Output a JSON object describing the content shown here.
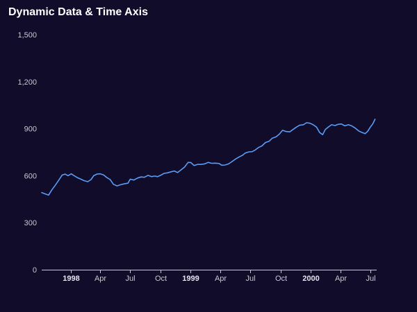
{
  "chart_data": {
    "type": "line",
    "title": "Dynamic Data & Time Axis",
    "xlabel": "",
    "ylabel": "",
    "x_axis_type": "time",
    "xlim": [
      "1997-10-05",
      "2000-07-19"
    ],
    "ylim": [
      0,
      1500
    ],
    "yticks": [
      {
        "value": 0,
        "label": "0"
      },
      {
        "value": 300,
        "label": "300"
      },
      {
        "value": 600,
        "label": "600"
      },
      {
        "value": 900,
        "label": "900"
      },
      {
        "value": 1200,
        "label": "1,200"
      },
      {
        "value": 1500,
        "label": "1,500"
      }
    ],
    "xticks": [
      {
        "date": "1998-01-01",
        "label": "1998",
        "strong": true
      },
      {
        "date": "1998-04-01",
        "label": "Apr",
        "strong": false
      },
      {
        "date": "1998-07-01",
        "label": "Jul",
        "strong": false
      },
      {
        "date": "1998-10-01",
        "label": "Oct",
        "strong": false
      },
      {
        "date": "1999-01-01",
        "label": "1999",
        "strong": true
      },
      {
        "date": "1999-04-01",
        "label": "Apr",
        "strong": false
      },
      {
        "date": "1999-07-01",
        "label": "Jul",
        "strong": false
      },
      {
        "date": "1999-10-01",
        "label": "Oct",
        "strong": false
      },
      {
        "date": "2000-01-01",
        "label": "2000",
        "strong": true
      },
      {
        "date": "2000-04-01",
        "label": "Apr",
        "strong": false
      },
      {
        "date": "2000-07-01",
        "label": "Jul",
        "strong": false
      }
    ],
    "grid": false,
    "colors": {
      "background": "#100c2a",
      "line": "#5b9cf6",
      "axis": "#c9cad1",
      "text": "#ffffff"
    },
    "series": [
      {
        "name": "",
        "points": [
          [
            "1997-10-05",
            492
          ],
          [
            "1997-10-16",
            483
          ],
          [
            "1997-10-26",
            476
          ],
          [
            "1997-11-05",
            510
          ],
          [
            "1997-11-14",
            535
          ],
          [
            "1997-11-25",
            568
          ],
          [
            "1997-12-06",
            604
          ],
          [
            "1997-12-15",
            610
          ],
          [
            "1997-12-24",
            600
          ],
          [
            "1998-01-03",
            612
          ],
          [
            "1998-01-10",
            602
          ],
          [
            "1998-01-21",
            588
          ],
          [
            "1998-02-01",
            578
          ],
          [
            "1998-02-11",
            568
          ],
          [
            "1998-02-22",
            562
          ],
          [
            "1998-03-04",
            575
          ],
          [
            "1998-03-12",
            600
          ],
          [
            "1998-03-22",
            610
          ],
          [
            "1998-04-01",
            612
          ],
          [
            "1998-04-11",
            605
          ],
          [
            "1998-04-21",
            588
          ],
          [
            "1998-05-01",
            575
          ],
          [
            "1998-05-11",
            545
          ],
          [
            "1998-05-22",
            535
          ],
          [
            "1998-06-01",
            542
          ],
          [
            "1998-06-12",
            548
          ],
          [
            "1998-06-24",
            552
          ],
          [
            "1998-07-01",
            578
          ],
          [
            "1998-07-12",
            572
          ],
          [
            "1998-07-23",
            585
          ],
          [
            "1998-08-03",
            592
          ],
          [
            "1998-08-13",
            590
          ],
          [
            "1998-08-24",
            602
          ],
          [
            "1998-09-04",
            594
          ],
          [
            "1998-09-13",
            598
          ],
          [
            "1998-09-22",
            594
          ],
          [
            "1998-10-01",
            602
          ],
          [
            "1998-10-12",
            615
          ],
          [
            "1998-10-22",
            618
          ],
          [
            "1998-11-02",
            625
          ],
          [
            "1998-11-12",
            630
          ],
          [
            "1998-11-22",
            620
          ],
          [
            "1998-12-03",
            638
          ],
          [
            "1998-12-13",
            655
          ],
          [
            "1998-12-24",
            685
          ],
          [
            "1999-01-01",
            684
          ],
          [
            "1999-01-11",
            665
          ],
          [
            "1999-01-22",
            672
          ],
          [
            "1999-02-01",
            672
          ],
          [
            "1999-02-12",
            675
          ],
          [
            "1999-02-23",
            685
          ],
          [
            "1999-03-05",
            679
          ],
          [
            "1999-03-16",
            680
          ],
          [
            "1999-03-28",
            678
          ],
          [
            "1999-04-05",
            667
          ],
          [
            "1999-04-15",
            668
          ],
          [
            "1999-04-26",
            675
          ],
          [
            "1999-05-06",
            690
          ],
          [
            "1999-05-17",
            706
          ],
          [
            "1999-05-28",
            720
          ],
          [
            "1999-06-07",
            730
          ],
          [
            "1999-06-16",
            745
          ],
          [
            "1999-06-27",
            752
          ],
          [
            "1999-07-06",
            753
          ],
          [
            "1999-07-16",
            764
          ],
          [
            "1999-07-26",
            780
          ],
          [
            "1999-08-05",
            790
          ],
          [
            "1999-08-16",
            812
          ],
          [
            "1999-08-27",
            820
          ],
          [
            "1999-09-06",
            840
          ],
          [
            "1999-09-17",
            848
          ],
          [
            "1999-09-27",
            865
          ],
          [
            "1999-10-07",
            890
          ],
          [
            "1999-10-18",
            882
          ],
          [
            "1999-10-29",
            880
          ],
          [
            "1999-11-08",
            895
          ],
          [
            "1999-11-18",
            910
          ],
          [
            "1999-11-28",
            922
          ],
          [
            "1999-12-09",
            925
          ],
          [
            "1999-12-19",
            938
          ],
          [
            "1999-12-29",
            935
          ],
          [
            "2000-01-08",
            925
          ],
          [
            "2000-01-18",
            910
          ],
          [
            "2000-01-28",
            875
          ],
          [
            "2000-02-06",
            862
          ],
          [
            "2000-02-14",
            895
          ],
          [
            "2000-02-24",
            912
          ],
          [
            "2000-03-04",
            925
          ],
          [
            "2000-03-14",
            920
          ],
          [
            "2000-03-24",
            928
          ],
          [
            "2000-04-03",
            930
          ],
          [
            "2000-04-13",
            918
          ],
          [
            "2000-04-24",
            925
          ],
          [
            "2000-05-04",
            918
          ],
          [
            "2000-05-14",
            905
          ],
          [
            "2000-05-25",
            886
          ],
          [
            "2000-06-04",
            876
          ],
          [
            "2000-06-14",
            868
          ],
          [
            "2000-06-22",
            884
          ],
          [
            "2000-06-29",
            908
          ],
          [
            "2000-07-07",
            930
          ],
          [
            "2000-07-14",
            960
          ]
        ]
      }
    ]
  }
}
